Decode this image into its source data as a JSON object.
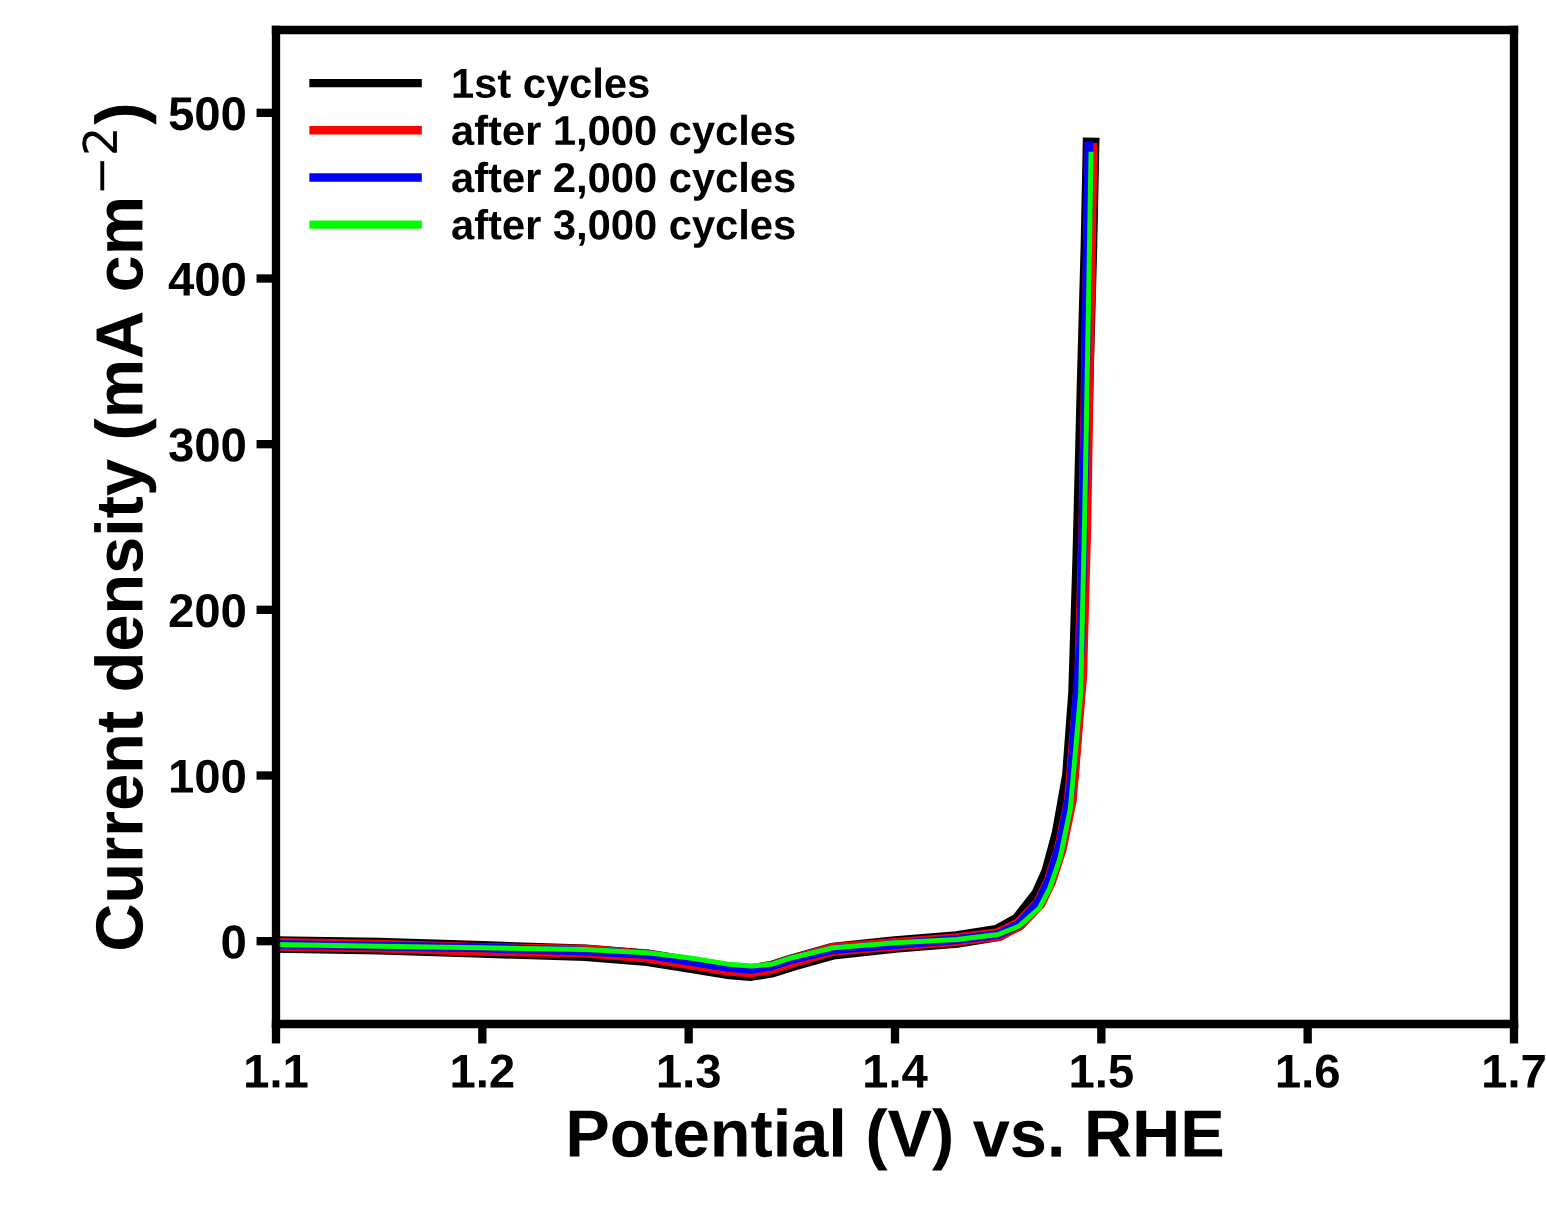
{
  "chart_data": {
    "type": "line",
    "xlabel": "Potential (V) vs. RHE",
    "ylabel": "Current density (mA cm$^{−2}$)",
    "xlim": [
      1.1,
      1.7
    ],
    "ylim": [
      -50,
      550
    ],
    "xticks": [
      1.1,
      1.2,
      1.3,
      1.4,
      1.5,
      1.6,
      1.7
    ],
    "yticks": [
      0,
      100,
      200,
      300,
      400,
      500
    ],
    "grid": false,
    "legend": "top left",
    "line_style": "solid",
    "marker": "none",
    "series": [
      {
        "name": "1st cycles",
        "color": "#000000",
        "x": [
          1.1,
          1.15,
          1.2,
          1.25,
          1.28,
          1.3,
          1.32,
          1.33,
          1.34,
          1.35,
          1.37,
          1.4,
          1.43,
          1.45,
          1.46,
          1.47,
          1.475,
          1.48,
          1.485,
          1.488,
          1.49,
          1.492,
          1.494,
          1.495
        ],
        "values": [
          -2,
          -3,
          -5,
          -7,
          -10,
          -14,
          -18,
          -19,
          -17,
          -13,
          -6,
          -2,
          1,
          5,
          12,
          28,
          42,
          65,
          100,
          150,
          230,
          330,
          420,
          480
        ]
      },
      {
        "name": "after 1,000 cycles",
        "color": "#ff0000",
        "x": [
          1.1,
          1.15,
          1.2,
          1.25,
          1.28,
          1.3,
          1.32,
          1.33,
          1.34,
          1.35,
          1.37,
          1.4,
          1.43,
          1.45,
          1.46,
          1.47,
          1.475,
          1.48,
          1.485,
          1.49,
          1.492,
          1.494,
          1.495
        ],
        "values": [
          -2,
          -3,
          -5,
          -6,
          -9,
          -13,
          -17,
          -18,
          -16,
          -12,
          -5,
          -2,
          1,
          4,
          10,
          23,
          36,
          55,
          85,
          160,
          250,
          400,
          478
        ]
      },
      {
        "name": "after 2,000 cycles",
        "color": "#0000ff",
        "x": [
          1.1,
          1.15,
          1.2,
          1.25,
          1.28,
          1.3,
          1.32,
          1.33,
          1.34,
          1.35,
          1.37,
          1.4,
          1.43,
          1.45,
          1.46,
          1.47,
          1.475,
          1.48,
          1.485,
          1.49,
          1.492,
          1.493,
          1.494
        ],
        "values": [
          -2,
          -3,
          -4,
          -6,
          -8,
          -12,
          -16,
          -17,
          -15,
          -11,
          -5,
          -2,
          1,
          4,
          10,
          24,
          38,
          58,
          90,
          180,
          300,
          400,
          480
        ]
      },
      {
        "name": "after 3,000 cycles",
        "color": "#00ff00",
        "x": [
          1.1,
          1.15,
          1.2,
          1.25,
          1.28,
          1.3,
          1.32,
          1.33,
          1.34,
          1.35,
          1.37,
          1.4,
          1.43,
          1.45,
          1.46,
          1.47,
          1.475,
          1.48,
          1.485,
          1.49,
          1.492,
          1.494,
          1.495
        ],
        "values": [
          -2,
          -3,
          -4,
          -5,
          -7,
          -10,
          -14,
          -15,
          -14,
          -10,
          -4,
          -1,
          1,
          4,
          9,
          20,
          32,
          50,
          80,
          150,
          260,
          400,
          475
        ]
      }
    ]
  }
}
